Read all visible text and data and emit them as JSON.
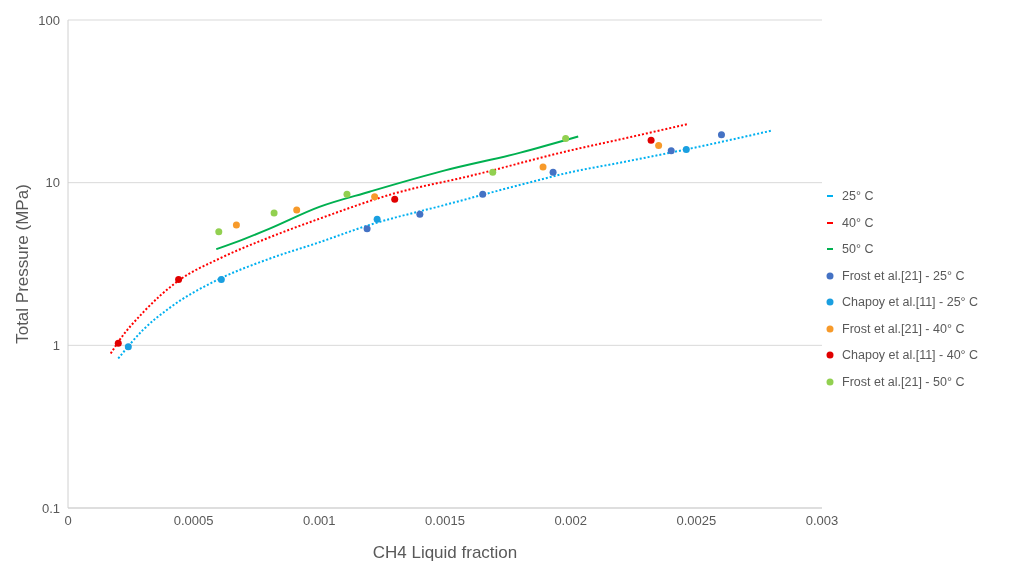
{
  "chart_data": {
    "type": "scatter",
    "xlabel": "CH4 Liquid fraction",
    "ylabel": "Total Pressure (MPa)",
    "log": "y",
    "grid": "y",
    "legend": "right",
    "xlim": [
      0,
      0.003
    ],
    "xticks": [
      0,
      0.0005,
      0.001,
      0.0015,
      0.002,
      0.0025,
      0.003
    ],
    "ylim": [
      0.1,
      100
    ],
    "yticks": [
      0.1,
      1,
      10,
      100
    ],
    "series": [
      {
        "name": "25° C",
        "type": "line",
        "line_style": "dashed",
        "marker": "none",
        "color": "#00b0f0",
        "x": [
          0.0002,
          0.0003,
          0.0004,
          0.0006,
          0.0008,
          0.001,
          0.0012,
          0.0015,
          0.0018,
          0.002,
          0.0022,
          0.0025,
          0.0028
        ],
        "values": [
          0.83,
          1.25,
          1.68,
          2.55,
          3.4,
          4.3,
          5.5,
          7.3,
          9.7,
          11.6,
          13.3,
          16.5,
          20.9
        ]
      },
      {
        "name": "40° C",
        "type": "line",
        "line_style": "dashed",
        "marker": "none",
        "color": "#ff0000",
        "x": [
          0.00017,
          0.0002,
          0.0003,
          0.00044,
          0.0006,
          0.0008,
          0.001,
          0.0013,
          0.0016,
          0.002,
          0.0022,
          0.00247
        ],
        "values": [
          0.89,
          1.05,
          1.6,
          2.5,
          3.4,
          4.6,
          6.0,
          8.6,
          11.0,
          15.8,
          18.5,
          23
        ]
      },
      {
        "name": "50° C",
        "type": "line",
        "line_style": "solid",
        "marker": "none",
        "color": "#00b050",
        "x": [
          0.00059,
          0.0007,
          0.0008,
          0.001,
          0.0012,
          0.0015,
          0.0018,
          0.00203
        ],
        "values": [
          3.9,
          4.5,
          5.2,
          7.1,
          8.8,
          11.9,
          15.3,
          19.2
        ]
      },
      {
        "name": "Frost et al.[21] - 25° C",
        "marker": "circle",
        "color": "#4472c4",
        "x": [
          0.00119,
          0.0014,
          0.00165,
          0.00193,
          0.0024,
          0.0026
        ],
        "values": [
          5.2,
          6.4,
          8.5,
          11.6,
          15.7,
          19.7
        ]
      },
      {
        "name": "Chapoy et al.[11] - 25° C",
        "marker": "circle",
        "color": "#1a9fe0",
        "x": [
          0.00024,
          0.00061,
          0.00123,
          0.00246
        ],
        "values": [
          0.98,
          2.54,
          5.96,
          16
        ]
      },
      {
        "name": "Frost et al.[21] - 40° C",
        "marker": "circle",
        "color": "#f79a2a",
        "x": [
          0.00067,
          0.00091,
          0.00122,
          0.00189,
          0.00235
        ],
        "values": [
          5.5,
          6.8,
          8.2,
          12.5,
          16.9
        ]
      },
      {
        "name": "Chapoy et al.[11] - 40° C",
        "marker": "circle",
        "color": "#e00000",
        "x": [
          0.0002,
          0.00044,
          0.0013,
          0.00232
        ],
        "values": [
          1.03,
          2.54,
          7.9,
          18.2
        ]
      },
      {
        "name": "Frost et al.[21] - 50° C",
        "marker": "circle",
        "color": "#92d050",
        "x": [
          0.0006,
          0.00082,
          0.00111,
          0.00169,
          0.00198
        ],
        "values": [
          5.0,
          6.5,
          8.5,
          11.6,
          18.7
        ]
      }
    ]
  }
}
